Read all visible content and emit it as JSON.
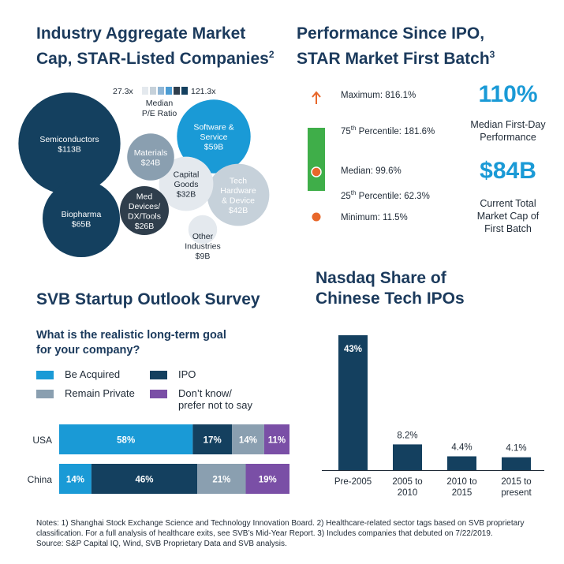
{
  "panels": {
    "market_cap": {
      "title_line1": "Industry Aggregate Market",
      "title_line2": "Cap, STAR-Listed Companies",
      "title_sup": "2",
      "scale_min": "27.3x",
      "scale_max": "121.3x",
      "scale_label_line1": "Median",
      "scale_label_line2": "P/E Ratio"
    },
    "performance": {
      "title_line1": "Performance Since IPO,",
      "title_line2": "STAR Market First Batch",
      "title_sup": "3",
      "maximum": "Maximum: 816.1%",
      "p75_pre": "75",
      "p75_sup": "th",
      "p75_post": " Percentile: 181.6%",
      "median": "Median: 99.6%",
      "p25_pre": "25",
      "p25_sup": "th",
      "p25_post": " Percentile: 62.3%",
      "minimum": "Minimum: 11.5%",
      "stat1_value": "110%",
      "stat1_line1": "Median First-Day",
      "stat1_line2": "Performance",
      "stat2_value": "$84B",
      "stat2_line1": "Current Total",
      "stat2_line2": "Market Cap of",
      "stat2_line3": "First Batch"
    },
    "survey": {
      "title": "SVB Startup Outlook Survey",
      "question_line1": "What is the realistic long-term goal",
      "question_line2": "for your company?",
      "legend": {
        "acquired": "Be Acquired",
        "ipo": "IPO",
        "private": "Remain Private",
        "dont_know_line1": "Don’t know/",
        "dont_know_line2": "prefer not to say"
      }
    },
    "nasdaq": {
      "title_line1": "Nasdaq Share of",
      "title_line2": "Chinese Tech IPOs"
    }
  },
  "notes": {
    "line1": "Notes: 1) Shanghai Stock Exchange Science and Technology Innovation Board. 2) Healthcare-related sector tags based on SVB proprietary",
    "line2": "classification. For a full analysis of healthcare exits, see SVB’s Mid-Year Report. 3) Includes companies that debuted on 7/22/2019.",
    "line3": "Source: S&P Capital IQ, Wind, SVB Proprietary Data and SVB analysis."
  },
  "colors": {
    "navy": "#1b3a5c",
    "dark_navy": "#14405f",
    "blue": "#1a9ad6",
    "gray": "#8a9fb0",
    "light_gray": "#d5dde4",
    "purple": "#7a4fa6",
    "green": "#3fae49",
    "orange": "#e8672a",
    "slate": "#2f3e4c"
  },
  "chart_data": [
    {
      "type": "bubble",
      "title": "Industry Aggregate Market Cap, STAR-Listed Companies",
      "size_unit": "$B aggregate market cap",
      "color_scale": "Median P/E Ratio, 27.3x to 121.3x",
      "bubbles": [
        {
          "name": "Semiconductors",
          "label": "$113B",
          "value": 113,
          "shade": "dark"
        },
        {
          "name": "Biopharma",
          "label": "$65B",
          "value": 65,
          "shade": "dark"
        },
        {
          "name": "Software & Service",
          "label": "$59B",
          "value": 59,
          "shade": "blue"
        },
        {
          "name": "Tech Hardware & Device",
          "label": "$42B",
          "value": 42,
          "shade": "light"
        },
        {
          "name": "Capital Goods",
          "label": "$32B",
          "value": 32,
          "shade": "pale"
        },
        {
          "name": "Med Devices/ DX/Tools",
          "label": "$26B",
          "value": 26,
          "shade": "slate"
        },
        {
          "name": "Materials",
          "label": "$24B",
          "value": 24,
          "shade": "gray"
        },
        {
          "name": "Other Industries",
          "label": "$9B",
          "value": 9,
          "shade": "pale"
        }
      ]
    },
    {
      "type": "box",
      "title": "Performance Since IPO, STAR Market First Batch",
      "unit": "%",
      "maximum": 816.1,
      "p75": 181.6,
      "median": 99.6,
      "p25": 62.3,
      "minimum": 11.5
    },
    {
      "type": "bar",
      "orientation": "horizontal",
      "stacked": true,
      "title": "What is the realistic long-term goal for your company?",
      "categories": [
        "USA",
        "China"
      ],
      "series": [
        {
          "name": "Be Acquired",
          "values": [
            58,
            14
          ],
          "color": "#1a9ad6"
        },
        {
          "name": "IPO",
          "values": [
            17,
            46
          ],
          "color": "#14405f"
        },
        {
          "name": "Remain Private",
          "values": [
            14,
            21
          ],
          "color": "#8a9fb0"
        },
        {
          "name": "Don’t know/ prefer not to say",
          "values": [
            11,
            19
          ],
          "color": "#7a4fa6"
        }
      ],
      "unit": "%"
    },
    {
      "type": "bar",
      "title": "Nasdaq Share of Chinese Tech IPOs",
      "categories": [
        "Pre-2005",
        "2005 to 2010",
        "2010 to 2015",
        "2015 to present"
      ],
      "values": [
        43,
        8.2,
        4.4,
        4.1
      ],
      "labels": [
        "43%",
        "8.2%",
        "4.4%",
        "4.1%"
      ],
      "unit": "%"
    }
  ]
}
